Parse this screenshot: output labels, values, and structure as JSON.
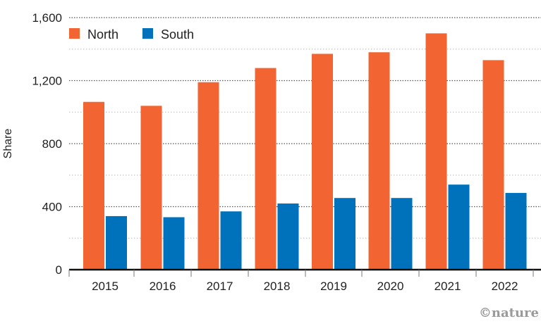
{
  "chart_data": {
    "type": "bar",
    "title": "",
    "xlabel": "",
    "ylabel": "Share",
    "ylim": [
      0,
      1600
    ],
    "yticks": [
      0,
      400,
      800,
      1200,
      1600
    ],
    "ytick_labels": [
      "0",
      "400",
      "800",
      "1,200",
      "1,600"
    ],
    "minor_gridlines": [
      200,
      600,
      1000,
      1400
    ],
    "grid": true,
    "legend_position": "top-left",
    "categories": [
      "2015",
      "2016",
      "2017",
      "2018",
      "2019",
      "2020",
      "2021",
      "2022"
    ],
    "series": [
      {
        "name": "North",
        "color": "#F26532",
        "values": [
          1065,
          1040,
          1190,
          1280,
          1370,
          1380,
          1500,
          1330
        ]
      },
      {
        "name": "South",
        "color": "#0072BC",
        "values": [
          340,
          333,
          370,
          420,
          455,
          455,
          540,
          487
        ]
      }
    ]
  },
  "credit": "©nature"
}
